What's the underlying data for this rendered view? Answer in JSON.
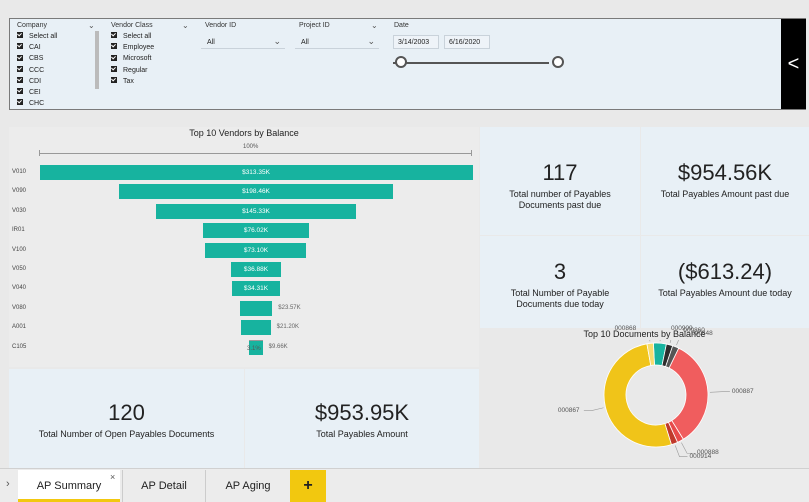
{
  "filters": {
    "company": {
      "title": "Company",
      "items": [
        "Select all",
        "CAI",
        "CBS",
        "CCC",
        "CDI",
        "CEI",
        "CHC"
      ]
    },
    "vendor_class": {
      "title": "Vendor Class",
      "items": [
        "Select all",
        "Employee",
        "Microsoft",
        "Regular",
        "Tax"
      ]
    },
    "vendor_id": {
      "title": "Vendor ID",
      "value": "All"
    },
    "project_id": {
      "title": "Project ID",
      "value": "All"
    },
    "date": {
      "title": "Date",
      "start": "3/14/2003",
      "end": "6/16/2020"
    },
    "collapse_glyph": "<"
  },
  "funnel": {
    "title": "Top 10 Vendors by Balance",
    "top_pct": "100%",
    "bottom_pct": "3.1%"
  },
  "chart_data": [
    {
      "type": "bar",
      "subtype": "funnel",
      "title": "Top 10 Vendors by Balance",
      "categories": [
        "V010",
        "V090",
        "V030",
        "IR01",
        "V100",
        "V050",
        "V040",
        "V080",
        "A001",
        "C105"
      ],
      "values": [
        313.35,
        198.46,
        145.33,
        76.02,
        73.1,
        36.88,
        34.31,
        23.57,
        21.2,
        9.66
      ],
      "labels": [
        "$313.35K",
        "$198.46K",
        "$145.33K",
        "$76.02K",
        "$73.10K",
        "$36.88K",
        "$34.31K",
        "$23.57K",
        "$21.20K",
        "$9.66K"
      ],
      "color": "#17b39f"
    },
    {
      "type": "pie",
      "subtype": "donut",
      "title": "Top 10 Documents by Balance",
      "labels": [
        "000867",
        "000868",
        "000909",
        "000860",
        "000848",
        "000887",
        "000888",
        "000914"
      ],
      "values": [
        52,
        2,
        4,
        2,
        2,
        34,
        2,
        2
      ],
      "colors": [
        "#f0c419",
        "#f7dc6f",
        "#17b39f",
        "#2d2d2d",
        "#555555",
        "#f05d5e",
        "#e84a4a",
        "#c0392b"
      ]
    }
  ],
  "kpis": {
    "past_due_count": {
      "value": "117",
      "label": "Total number of Payables Documents past due"
    },
    "past_due_amount": {
      "value": "$954.56K",
      "label": "Total Payables Amount past due"
    },
    "due_today_count": {
      "value": "3",
      "label": "Total Number of Payable Documents due today"
    },
    "due_today_amount": {
      "value": "($613.24)",
      "label": "Total Payables Amount due today"
    },
    "open_count": {
      "value": "120",
      "label": "Total Number of Open Payables Documents"
    },
    "total_amount": {
      "value": "$953.95K",
      "label": "Total Payables Amount"
    }
  },
  "tabs": {
    "items": [
      "AP Summary",
      "AP Detail",
      "AP Aging"
    ],
    "active": "AP Summary",
    "add_glyph": "+",
    "close_glyph": "×",
    "nav_glyph": "›"
  }
}
